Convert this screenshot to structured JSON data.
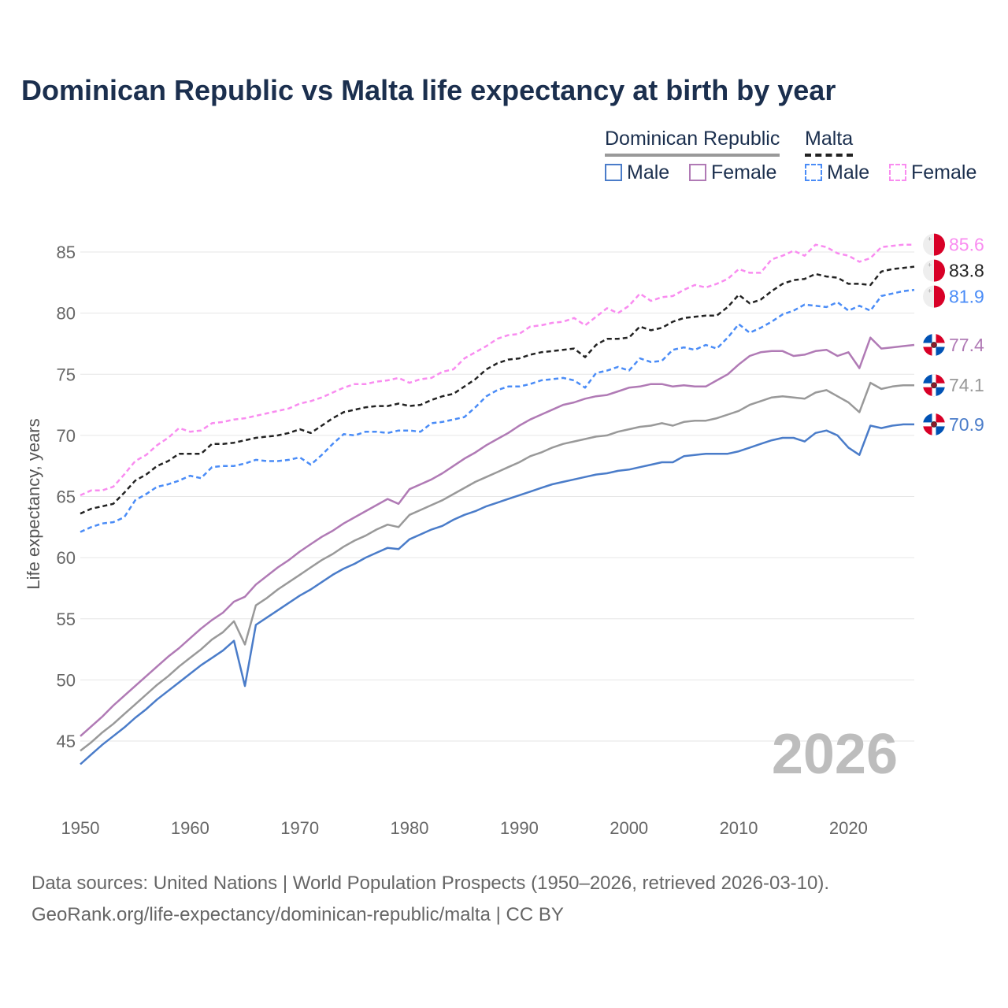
{
  "title": "Dominican Republic vs Malta life expectancy at birth by year",
  "legend": {
    "groups": [
      {
        "label": "Dominican Republic",
        "color": "#999999"
      },
      {
        "label": "Malta",
        "color": "#222222"
      }
    ],
    "items": [
      {
        "label": "Male",
        "color": "#4a7cc9",
        "dashed": false
      },
      {
        "label": "Female",
        "color": "#b07ab5",
        "dashed": false
      },
      {
        "label": "Male",
        "color": "#4a8cf7",
        "dashed": true
      },
      {
        "label": "Female",
        "color": "#f98cf0",
        "dashed": true
      }
    ]
  },
  "year_watermark": "2026",
  "source_line1": "Data sources: United Nations | World Population Prospects (1950–2026, retrieved 2026-03-10).",
  "source_line2": "GeoRank.org/life-expectancy/dominican-republic/malta | CC BY",
  "chart_data": {
    "type": "line",
    "title": "Dominican Republic vs Malta life expectancy at birth by year",
    "xlabel": "",
    "ylabel": "Life expectancy, years",
    "xlim": [
      1950,
      2026
    ],
    "ylim": [
      40,
      88
    ],
    "xticks": [
      1950,
      1960,
      1970,
      1980,
      1990,
      2000,
      2010,
      2020
    ],
    "yticks": [
      45,
      50,
      55,
      60,
      65,
      70,
      75,
      80,
      85
    ],
    "grid": true,
    "x_start": 1950,
    "series": [
      {
        "name": "Dominican Republic Male",
        "country": "dr",
        "color": "#4a7cc9",
        "dashed": false,
        "end_label": "70.9",
        "values": [
          43.1,
          43.9,
          44.7,
          45.4,
          46.1,
          46.9,
          47.6,
          48.4,
          49.1,
          49.8,
          50.5,
          51.2,
          51.8,
          52.4,
          53.2,
          49.5,
          54.5,
          55.1,
          55.7,
          56.3,
          56.9,
          57.4,
          58.0,
          58.6,
          59.1,
          59.5,
          60.0,
          60.4,
          60.8,
          60.7,
          61.5,
          61.9,
          62.3,
          62.6,
          63.1,
          63.5,
          63.8,
          64.2,
          64.5,
          64.8,
          65.1,
          65.4,
          65.7,
          66.0,
          66.2,
          66.4,
          66.6,
          66.8,
          66.9,
          67.1,
          67.2,
          67.4,
          67.6,
          67.8,
          67.8,
          68.3,
          68.4,
          68.5,
          68.5,
          68.5,
          68.7,
          69.0,
          69.3,
          69.6,
          69.8,
          69.8,
          69.5,
          70.2,
          70.4,
          70.0,
          69.0,
          68.4,
          70.8,
          70.6,
          70.8,
          70.9,
          70.9
        ]
      },
      {
        "name": "Dominican Republic",
        "country": "dr",
        "color": "#999999",
        "dashed": false,
        "end_label": "74.1",
        "values": [
          44.2,
          44.9,
          45.7,
          46.4,
          47.2,
          48.0,
          48.8,
          49.6,
          50.3,
          51.1,
          51.8,
          52.5,
          53.3,
          53.9,
          54.8,
          52.9,
          56.1,
          56.7,
          57.4,
          58.0,
          58.6,
          59.2,
          59.8,
          60.3,
          60.9,
          61.4,
          61.8,
          62.3,
          62.7,
          62.5,
          63.5,
          63.9,
          64.3,
          64.7,
          65.2,
          65.7,
          66.2,
          66.6,
          67.0,
          67.4,
          67.8,
          68.3,
          68.6,
          69.0,
          69.3,
          69.5,
          69.7,
          69.9,
          70.0,
          70.3,
          70.5,
          70.7,
          70.8,
          71.0,
          70.8,
          71.1,
          71.2,
          71.2,
          71.4,
          71.7,
          72.0,
          72.5,
          72.8,
          73.1,
          73.2,
          73.1,
          73.0,
          73.5,
          73.7,
          73.2,
          72.7,
          71.9,
          74.3,
          73.8,
          74.0,
          74.1,
          74.1
        ]
      },
      {
        "name": "Dominican Republic Female",
        "country": "dr",
        "color": "#b07ab5",
        "dashed": false,
        "end_label": "77.4",
        "values": [
          45.4,
          46.2,
          47.0,
          47.9,
          48.7,
          49.5,
          50.3,
          51.1,
          51.9,
          52.6,
          53.4,
          54.2,
          54.9,
          55.5,
          56.4,
          56.8,
          57.8,
          58.5,
          59.2,
          59.8,
          60.5,
          61.1,
          61.7,
          62.2,
          62.8,
          63.3,
          63.8,
          64.3,
          64.8,
          64.4,
          65.6,
          66.0,
          66.4,
          66.9,
          67.5,
          68.1,
          68.6,
          69.2,
          69.7,
          70.2,
          70.8,
          71.3,
          71.7,
          72.1,
          72.5,
          72.7,
          73.0,
          73.2,
          73.3,
          73.6,
          73.9,
          74.0,
          74.2,
          74.2,
          74.0,
          74.1,
          74.0,
          74.0,
          74.5,
          75.0,
          75.8,
          76.5,
          76.8,
          76.9,
          76.9,
          76.5,
          76.6,
          76.9,
          77.0,
          76.5,
          76.8,
          75.5,
          78.0,
          77.1,
          77.2,
          77.3,
          77.4
        ]
      },
      {
        "name": "Malta Male",
        "country": "mt",
        "color": "#4a8cf7",
        "dashed": true,
        "end_label": "81.9",
        "values": [
          62.1,
          62.5,
          62.8,
          62.9,
          63.3,
          64.7,
          65.2,
          65.8,
          66.0,
          66.3,
          66.7,
          66.5,
          67.4,
          67.5,
          67.5,
          67.7,
          68.0,
          67.9,
          67.9,
          68.0,
          68.2,
          67.6,
          68.4,
          69.3,
          70.1,
          70.0,
          70.3,
          70.3,
          70.2,
          70.4,
          70.4,
          70.3,
          71.0,
          71.1,
          71.3,
          71.5,
          72.3,
          73.2,
          73.7,
          74.0,
          74.0,
          74.2,
          74.5,
          74.6,
          74.7,
          74.5,
          73.9,
          75.1,
          75.3,
          75.6,
          75.3,
          76.3,
          76.0,
          76.1,
          77.0,
          77.2,
          77.0,
          77.4,
          77.1,
          78.0,
          79.1,
          78.4,
          78.8,
          79.3,
          79.9,
          80.2,
          80.7,
          80.6,
          80.5,
          80.9,
          80.2,
          80.6,
          80.2,
          81.4,
          81.6,
          81.8,
          81.9
        ]
      },
      {
        "name": "Malta",
        "country": "mt",
        "color": "#222222",
        "dashed": true,
        "end_label": "83.8",
        "values": [
          63.6,
          64.0,
          64.2,
          64.4,
          65.3,
          66.3,
          66.8,
          67.5,
          67.9,
          68.5,
          68.5,
          68.5,
          69.3,
          69.3,
          69.4,
          69.6,
          69.8,
          69.9,
          70.0,
          70.2,
          70.5,
          70.2,
          70.8,
          71.4,
          71.9,
          72.1,
          72.3,
          72.4,
          72.4,
          72.6,
          72.4,
          72.5,
          72.9,
          73.2,
          73.4,
          74.0,
          74.6,
          75.4,
          75.9,
          76.2,
          76.3,
          76.6,
          76.8,
          76.9,
          77.0,
          77.1,
          76.4,
          77.4,
          77.9,
          77.9,
          78.0,
          78.9,
          78.6,
          78.8,
          79.3,
          79.6,
          79.7,
          79.8,
          79.8,
          80.5,
          81.5,
          80.8,
          81.1,
          81.8,
          82.4,
          82.7,
          82.8,
          83.2,
          83.0,
          82.9,
          82.4,
          82.4,
          82.3,
          83.4,
          83.6,
          83.7,
          83.8
        ]
      },
      {
        "name": "Malta Female",
        "country": "mt",
        "color": "#f98cf0",
        "dashed": true,
        "end_label": "85.6",
        "values": [
          65.1,
          65.5,
          65.5,
          65.8,
          66.8,
          67.9,
          68.4,
          69.2,
          69.8,
          70.6,
          70.3,
          70.4,
          71.0,
          71.1,
          71.3,
          71.4,
          71.6,
          71.8,
          72.0,
          72.2,
          72.6,
          72.8,
          73.1,
          73.5,
          73.9,
          74.2,
          74.2,
          74.4,
          74.5,
          74.7,
          74.3,
          74.6,
          74.7,
          75.2,
          75.4,
          76.3,
          76.8,
          77.3,
          77.9,
          78.2,
          78.3,
          78.9,
          79.0,
          79.2,
          79.3,
          79.6,
          79.0,
          79.7,
          80.4,
          80.0,
          80.6,
          81.6,
          81.0,
          81.3,
          81.4,
          81.9,
          82.3,
          82.1,
          82.4,
          82.8,
          83.6,
          83.3,
          83.3,
          84.4,
          84.7,
          85.1,
          84.7,
          85.6,
          85.4,
          84.9,
          84.7,
          84.2,
          84.5,
          85.4,
          85.5,
          85.6,
          85.6
        ]
      }
    ]
  }
}
